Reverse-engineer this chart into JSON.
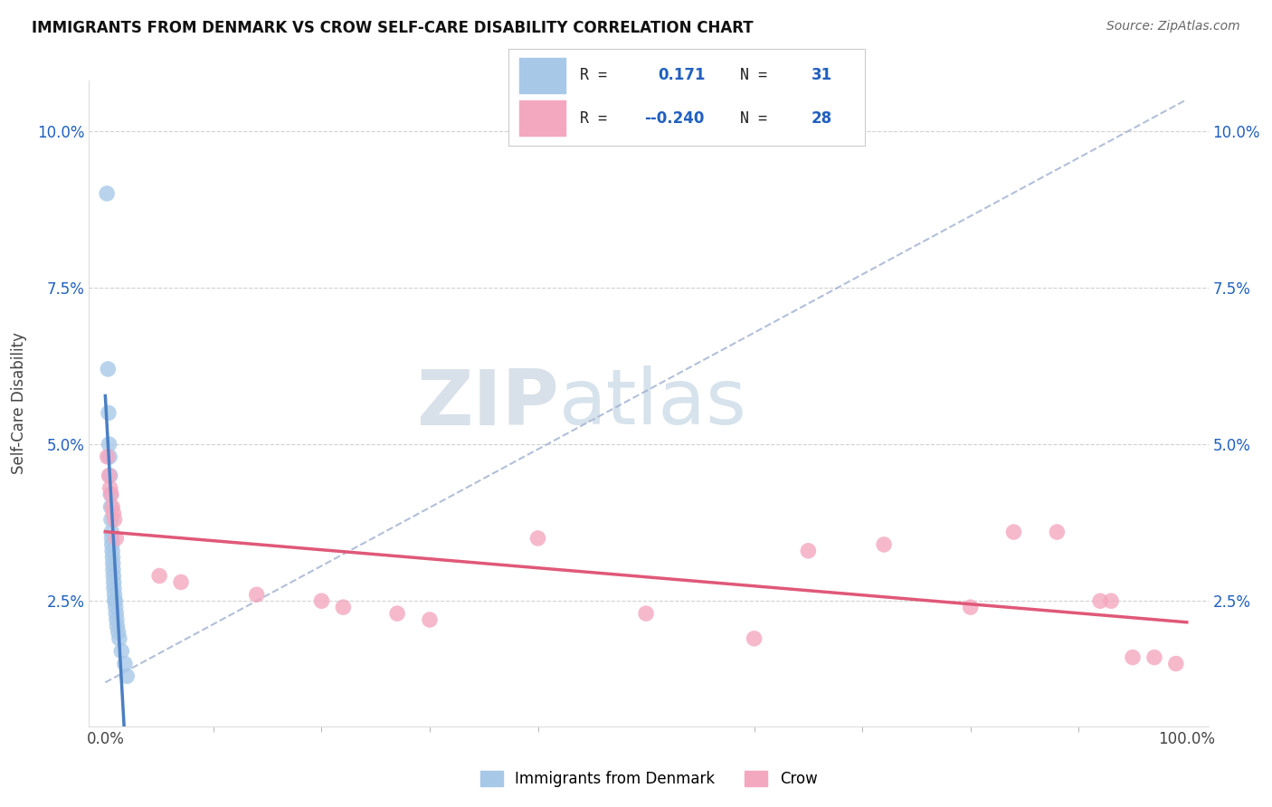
{
  "title": "IMMIGRANTS FROM DENMARK VS CROW SELF-CARE DISABILITY CORRELATION CHART",
  "source": "Source: ZipAtlas.com",
  "ylabel": "Self-Care Disability",
  "blue_color": "#a8c8e8",
  "pink_color": "#f4a8c0",
  "blue_line_color": "#4a7fc4",
  "pink_line_color": "#e05878",
  "ref_line_color": "#a0b0d0",
  "legend_r1": "0.171",
  "legend_n1": "31",
  "legend_r2": "-0.240",
  "legend_n2": "28",
  "text_dark": "#222222",
  "text_blue": "#2060c0",
  "grid_color": "#cccccc",
  "blue_x": [
    0.15,
    0.25,
    0.3,
    0.35,
    0.4,
    0.45,
    0.5,
    0.52,
    0.55,
    0.58,
    0.6,
    0.62,
    0.65,
    0.68,
    0.7,
    0.72,
    0.75,
    0.78,
    0.8,
    0.85,
    0.88,
    0.9,
    0.95,
    1.0,
    1.05,
    1.1,
    1.2,
    1.3,
    1.5,
    1.8,
    2.0
  ],
  "blue_y": [
    9.0,
    6.2,
    5.5,
    5.0,
    4.8,
    4.5,
    4.2,
    4.0,
    3.8,
    3.6,
    3.5,
    3.4,
    3.3,
    3.2,
    3.1,
    3.0,
    2.9,
    2.8,
    2.7,
    2.6,
    2.5,
    2.5,
    2.4,
    2.3,
    2.2,
    2.1,
    2.0,
    1.9,
    1.7,
    1.5,
    1.3
  ],
  "pink_x": [
    0.2,
    0.35,
    0.45,
    0.55,
    0.65,
    0.75,
    0.85,
    1.0,
    5.0,
    7.0,
    14.0,
    20.0,
    22.0,
    27.0,
    30.0,
    40.0,
    50.0,
    60.0,
    65.0,
    72.0,
    80.0,
    84.0,
    88.0,
    92.0,
    93.0,
    95.0,
    97.0,
    99.0
  ],
  "pink_y": [
    4.8,
    4.5,
    4.3,
    4.2,
    4.0,
    3.9,
    3.8,
    3.5,
    2.9,
    2.8,
    2.6,
    2.5,
    2.4,
    2.3,
    2.2,
    3.5,
    2.3,
    1.9,
    3.3,
    3.4,
    2.4,
    3.6,
    3.6,
    2.5,
    2.5,
    1.6,
    1.6,
    1.5
  ],
  "xlim": [
    -1.5,
    102
  ],
  "ylim": [
    0.5,
    10.8
  ],
  "xticks": [
    0,
    25,
    50,
    75,
    100
  ],
  "xtick_labels": [
    "0.0%",
    "",
    "",
    "",
    "100.0%"
  ],
  "yticks": [
    2.5,
    5.0,
    7.5,
    10.0
  ],
  "ytick_labels": [
    "2.5%",
    "5.0%",
    "7.5%",
    "10.0%"
  ]
}
